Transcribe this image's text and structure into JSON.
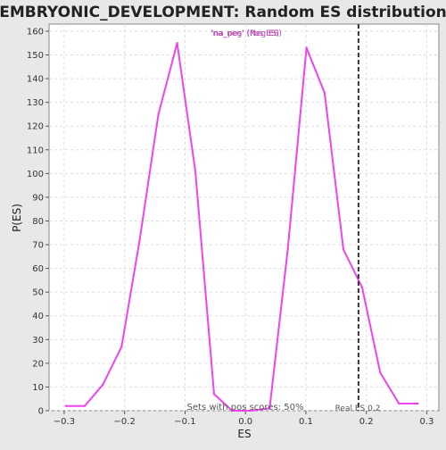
{
  "chart_data": {
    "type": "line",
    "title": "EMBRYONIC_DEVELOPMENT: Random ES distribution",
    "xlabel": "ES",
    "ylabel": "P(ES)",
    "xlim": [
      -0.325,
      0.32
    ],
    "ylim": [
      0,
      163
    ],
    "xticks": [
      -0.3,
      -0.2,
      -0.1,
      0.0,
      0.1,
      0.2,
      0.3
    ],
    "xtick_labels": [
      "−0.3",
      "−0.2",
      "−0.1",
      "0.0",
      "0.1",
      "0.2",
      "0.3"
    ],
    "yticks": [
      0,
      10,
      20,
      30,
      40,
      50,
      60,
      70,
      80,
      90,
      100,
      110,
      120,
      130,
      140,
      150,
      160
    ],
    "grid": true,
    "legend_text": "'na_neg' (Neg ES)",
    "legend_overlay_text": "'na_pos' (Pos ES)",
    "colors": {
      "series": "#ee44ee",
      "legend_neg": "#aa44cc",
      "legend_pos": "#cc4488",
      "marker": "#333333"
    },
    "series": [
      {
        "x": [
          -0.297,
          -0.266,
          -0.236,
          -0.205,
          -0.175,
          -0.144,
          -0.113,
          -0.083,
          -0.052,
          -0.022,
          0.009,
          0.04,
          0.07,
          0.101,
          0.131,
          0.162,
          0.193,
          0.223,
          0.254,
          0.285
        ],
        "values": [
          2,
          2,
          11,
          27,
          72,
          125,
          155,
          101,
          7,
          0,
          0,
          1,
          68,
          153,
          134,
          68,
          52,
          16,
          3,
          3
        ]
      }
    ],
    "marker": {
      "x": 0.187,
      "label": "Real ES 0.2"
    },
    "annotation": "Sets with pos scores: 50%"
  }
}
